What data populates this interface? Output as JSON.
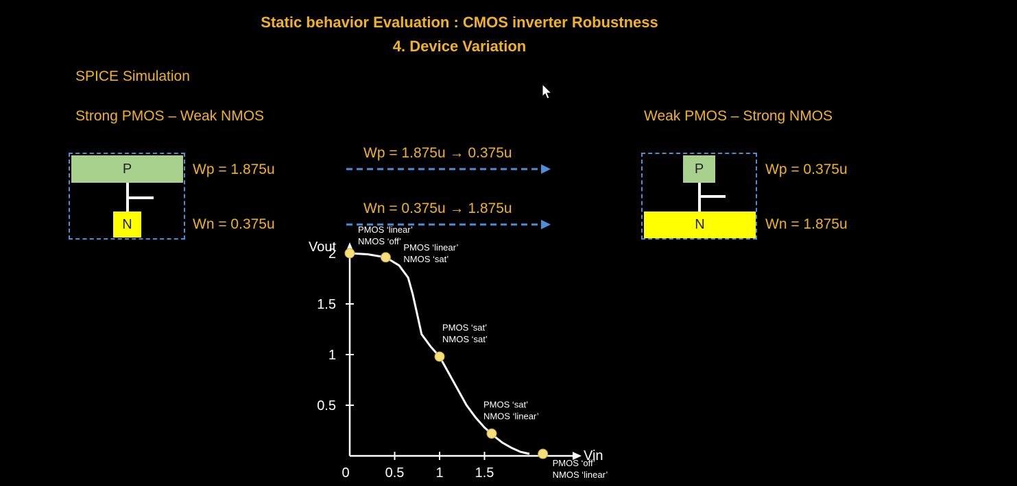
{
  "header": {
    "title_line1": "Static behavior Evaluation : CMOS inverter Robustness",
    "title_line2": "4. Device Variation"
  },
  "section_label": "SPICE Simulation",
  "left_case": {
    "heading": "Strong PMOS – Weak NMOS",
    "p_label": "P",
    "n_label": "N",
    "wp": "Wp = 1.875u",
    "wn": "Wn = 0.375u"
  },
  "right_case": {
    "heading": "Weak PMOS – Strong NMOS",
    "p_label": "P",
    "n_label": "N",
    "wp": "Wp = 0.375u",
    "wn": "Wn = 1.875u"
  },
  "transitions": {
    "wp_change": "Wp = 1.875u  → 0.375u",
    "wn_change": "Wn = 0.375u  → 1.875u"
  },
  "colors": {
    "text": "#f2b31e",
    "arrow": "#4a8fd8",
    "pmos_block": "#a9d18e",
    "nmos_block": "#ffff00",
    "marker": "#f5df7a"
  },
  "chart_data": {
    "type": "line",
    "xlabel": "Vin",
    "ylabel": "Vout",
    "xlim": [
      0,
      2
    ],
    "ylim": [
      0,
      2
    ],
    "x_ticks": [
      "0",
      "0.5",
      "1",
      "1.5"
    ],
    "y_ticks": [
      "0.5",
      "1",
      "1.5",
      "2"
    ],
    "series": [
      {
        "x": [
          0,
          0.2,
          0.4,
          0.55,
          0.65,
          0.7,
          0.75,
          0.8,
          0.9,
          1.0,
          1.1,
          1.2,
          1.3,
          1.4,
          1.5,
          1.6,
          1.7,
          1.8,
          1.9,
          2.0
        ],
        "y": [
          2.0,
          1.99,
          1.96,
          1.88,
          1.76,
          1.6,
          1.4,
          1.2,
          1.08,
          0.98,
          0.82,
          0.66,
          0.5,
          0.38,
          0.28,
          0.2,
          0.13,
          0.08,
          0.04,
          0.02
        ]
      }
    ],
    "annotations": [
      {
        "x": 0.0,
        "y": 2.0,
        "line1": "PMOS ‘linear’",
        "line2": "NMOS ‘off’"
      },
      {
        "x": 0.4,
        "y": 1.96,
        "line1": "PMOS ‘linear’",
        "line2": "NMOS ‘sat’"
      },
      {
        "x": 1.0,
        "y": 0.98,
        "line1": "PMOS ‘sat’",
        "line2": "NMOS ‘sat’"
      },
      {
        "x": 1.58,
        "y": 0.22,
        "line1": "PMOS ‘sat’",
        "line2": "NMOS ‘linear’"
      },
      {
        "x": 2.15,
        "y": 0.02,
        "line1": "PMOS ‘off’",
        "line2": "NMOS ‘linear’"
      }
    ]
  }
}
